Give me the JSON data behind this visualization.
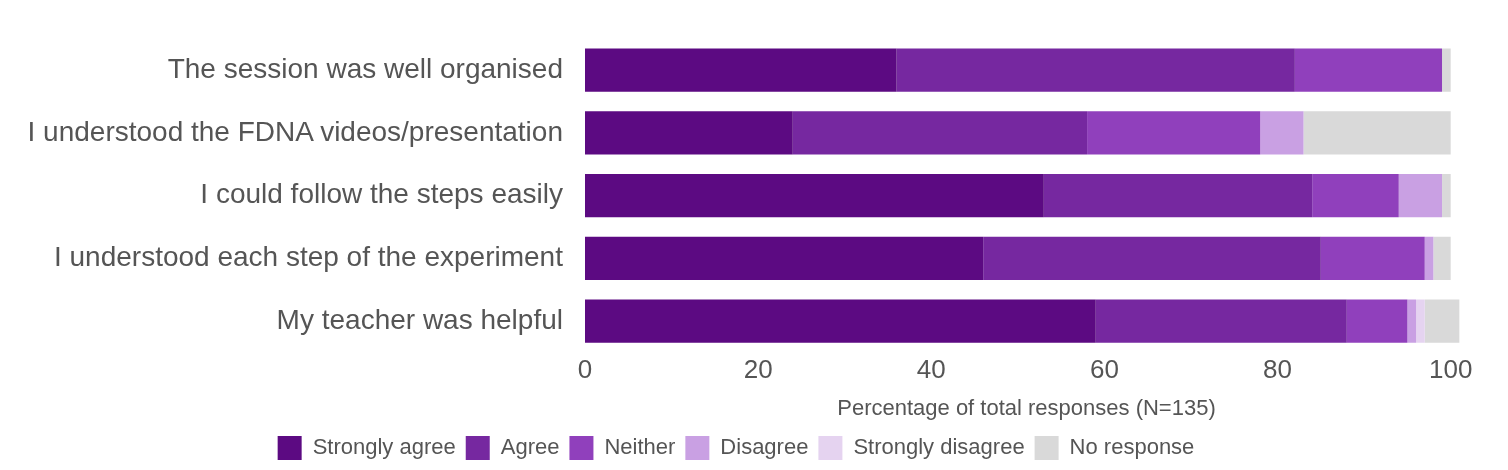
{
  "chart_data": {
    "type": "bar",
    "orientation": "horizontal",
    "stacked": true,
    "xlabel": "Percentage of total responses (N=135)",
    "categories": [
      "The session was well organised",
      "I understood the FDNA videos/presentation",
      "I could follow the steps easily",
      "I understood each step of the experiment",
      "My teacher was helpful"
    ],
    "series": [
      {
        "name": "Strongly agree",
        "color": "#5c0a82",
        "values": [
          36,
          24,
          53,
          46,
          59
        ]
      },
      {
        "name": "Agree",
        "color": "#7628a0",
        "values": [
          46,
          34,
          31,
          39,
          29
        ]
      },
      {
        "name": "Neither",
        "color": "#9040bc",
        "values": [
          17,
          20,
          10,
          12,
          7
        ]
      },
      {
        "name": "Disagree",
        "color": "#c9a0e3",
        "values": [
          0,
          5,
          5,
          1,
          1
        ]
      },
      {
        "name": "Strongly disagree",
        "color": "#e5d3f0",
        "values": [
          0,
          0,
          0,
          0,
          1
        ]
      },
      {
        "name": "No response",
        "color": "#d9d9d9",
        "values": [
          1,
          17,
          1,
          2,
          4
        ]
      }
    ],
    "xlim": [
      0,
      102
    ],
    "xticks": [
      0,
      20,
      40,
      60,
      80,
      100
    ],
    "grid": false,
    "legend": "bottom"
  }
}
